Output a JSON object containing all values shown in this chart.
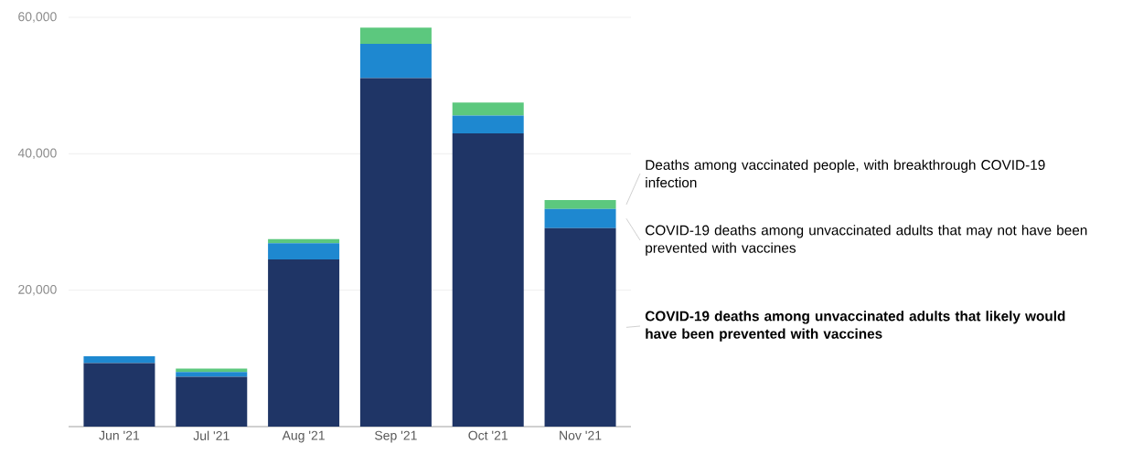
{
  "chart_data": {
    "type": "bar",
    "stacked": true,
    "categories": [
      "Jun '21",
      "Jul '21",
      "Aug '21",
      "Sep '21",
      "Oct '21",
      "Nov '21"
    ],
    "series": [
      {
        "name": "COVID-19 deaths among unvaccinated adults that likely would have been prevented with vaccines",
        "color": "#1f3566",
        "values": [
          9300,
          7300,
          24500,
          51100,
          43000,
          29100
        ]
      },
      {
        "name": "COVID-19 deaths among unvaccinated adults that may not have been prevented with vaccines",
        "color": "#1e88d0",
        "values": [
          1000,
          700,
          2400,
          5000,
          2600,
          2800
        ]
      },
      {
        "name": "Deaths among vaccinated people, with breakthrough COVID-19 infection",
        "color": "#5cc87e",
        "values": [
          0,
          500,
          600,
          2400,
          1900,
          1300
        ]
      }
    ],
    "ylim": [
      0,
      60000
    ],
    "yticks": [
      {
        "value": 20000,
        "label": "20,000"
      },
      {
        "value": 40000,
        "label": "40,000"
      },
      {
        "value": 60000,
        "label": "60,000"
      }
    ],
    "grid": "y",
    "legend": "right"
  }
}
